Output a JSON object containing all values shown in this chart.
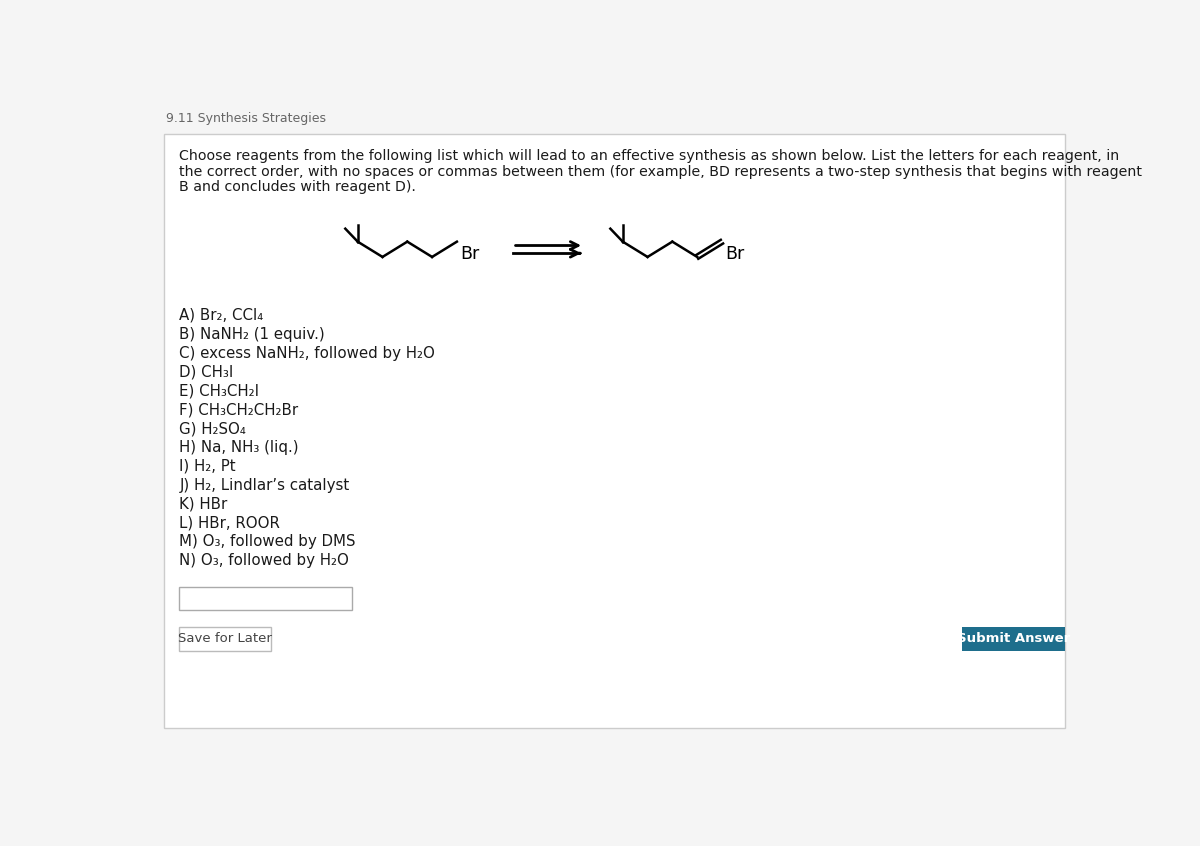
{
  "title": "9.11 Synthesis Strategies",
  "instruction_line1": "Choose reagents from the following list which will lead to an effective synthesis as shown below. List the letters for each reagent, in",
  "instruction_line2": "the correct order, with no spaces or commas between them (for example, BD represents a two-step synthesis that begins with reagent",
  "instruction_line3": "B and concludes with reagent D).",
  "reagents": [
    "A) Br₂, CCl₄",
    "B) NaNH₂ (1 equiv.)",
    "C) excess NaNH₂, followed by H₂O",
    "D) CH₃I",
    "E) CH₃CH₂I",
    "F) CH₃CH₂CH₂Br",
    "G) H₂SO₄",
    "H) Na, NH₃ (liq.)",
    "I) H₂, Pt",
    "J) H₂, Lindlar’s catalyst",
    "K) HBr",
    "L) HBr, ROOR",
    "M) O₃, followed by DMS",
    "N) O₃, followed by H₂O"
  ],
  "bg_color": "#ffffff",
  "page_bg": "#f5f5f5",
  "border_color": "#cccccc",
  "title_color": "#666666",
  "text_color": "#1a1a1a",
  "button_bg": "#1e6e8c",
  "button_text": "#ffffff",
  "save_btn_border": "#bbbbbb",
  "save_btn_text": "#444444"
}
